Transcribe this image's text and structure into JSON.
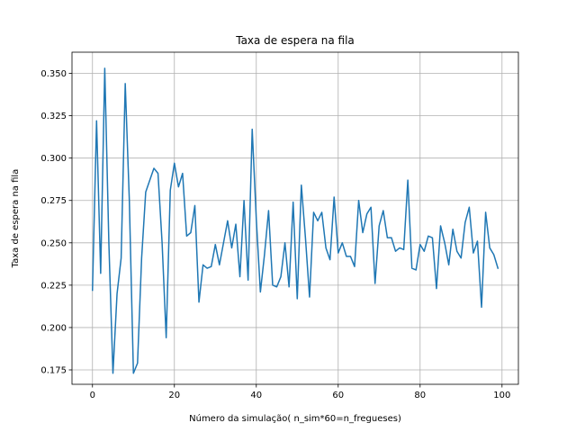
{
  "chart_data": {
    "type": "line",
    "title": "Taxa de espera na fila",
    "xlabel": "Número da simulação( n_sim*60=n_fregueses)",
    "ylabel": "Taxa de espera na fila",
    "xlim": [
      -5,
      104
    ],
    "ylim": [
      0.1665,
      0.3625
    ],
    "xticks": [
      0,
      20,
      40,
      60,
      80,
      100
    ],
    "yticks": [
      0.175,
      0.2,
      0.225,
      0.25,
      0.275,
      0.3,
      0.325,
      0.35
    ],
    "xtick_labels": [
      "0",
      "20",
      "40",
      "60",
      "80",
      "100"
    ],
    "ytick_labels": [
      "0.175",
      "0.200",
      "0.225",
      "0.250",
      "0.275",
      "0.300",
      "0.325",
      "0.350"
    ],
    "grid": true,
    "series": [
      {
        "color": "#1f77b4",
        "x": [
          0,
          1,
          2,
          3,
          4,
          5,
          6,
          7,
          8,
          9,
          10,
          11,
          12,
          13,
          14,
          15,
          16,
          17,
          18,
          19,
          20,
          21,
          22,
          23,
          24,
          25,
          26,
          27,
          28,
          29,
          30,
          31,
          32,
          33,
          34,
          35,
          36,
          37,
          38,
          39,
          40,
          41,
          42,
          43,
          44,
          45,
          46,
          47,
          48,
          49,
          50,
          51,
          52,
          53,
          54,
          55,
          56,
          57,
          58,
          59,
          60,
          61,
          62,
          63,
          64,
          65,
          66,
          67,
          68,
          69,
          70,
          71,
          72,
          73,
          74,
          75,
          76,
          77,
          78,
          79,
          80,
          81,
          82,
          83,
          84,
          85,
          86,
          87,
          88,
          89,
          90,
          91,
          92,
          93,
          94,
          95,
          96,
          97,
          98,
          99
        ],
        "y": [
          0.222,
          0.322,
          0.232,
          0.353,
          0.25,
          0.173,
          0.22,
          0.241,
          0.344,
          0.275,
          0.173,
          0.179,
          0.241,
          0.28,
          0.287,
          0.294,
          0.291,
          0.25,
          0.194,
          0.281,
          0.297,
          0.283,
          0.291,
          0.254,
          0.256,
          0.272,
          0.215,
          0.237,
          0.235,
          0.236,
          0.249,
          0.237,
          0.25,
          0.263,
          0.247,
          0.261,
          0.23,
          0.275,
          0.228,
          0.317,
          0.264,
          0.221,
          0.243,
          0.269,
          0.225,
          0.224,
          0.23,
          0.25,
          0.224,
          0.274,
          0.217,
          0.284,
          0.253,
          0.218,
          0.268,
          0.263,
          0.268,
          0.247,
          0.24,
          0.277,
          0.244,
          0.25,
          0.242,
          0.242,
          0.236,
          0.275,
          0.256,
          0.267,
          0.271,
          0.226,
          0.26,
          0.269,
          0.253,
          0.253,
          0.245,
          0.247,
          0.246,
          0.287,
          0.235,
          0.234,
          0.249,
          0.245,
          0.254,
          0.253,
          0.223,
          0.26,
          0.25,
          0.237,
          0.258,
          0.245,
          0.241,
          0.262,
          0.271,
          0.244,
          0.251,
          0.212,
          0.268,
          0.247,
          0.243,
          0.235
        ]
      }
    ]
  }
}
